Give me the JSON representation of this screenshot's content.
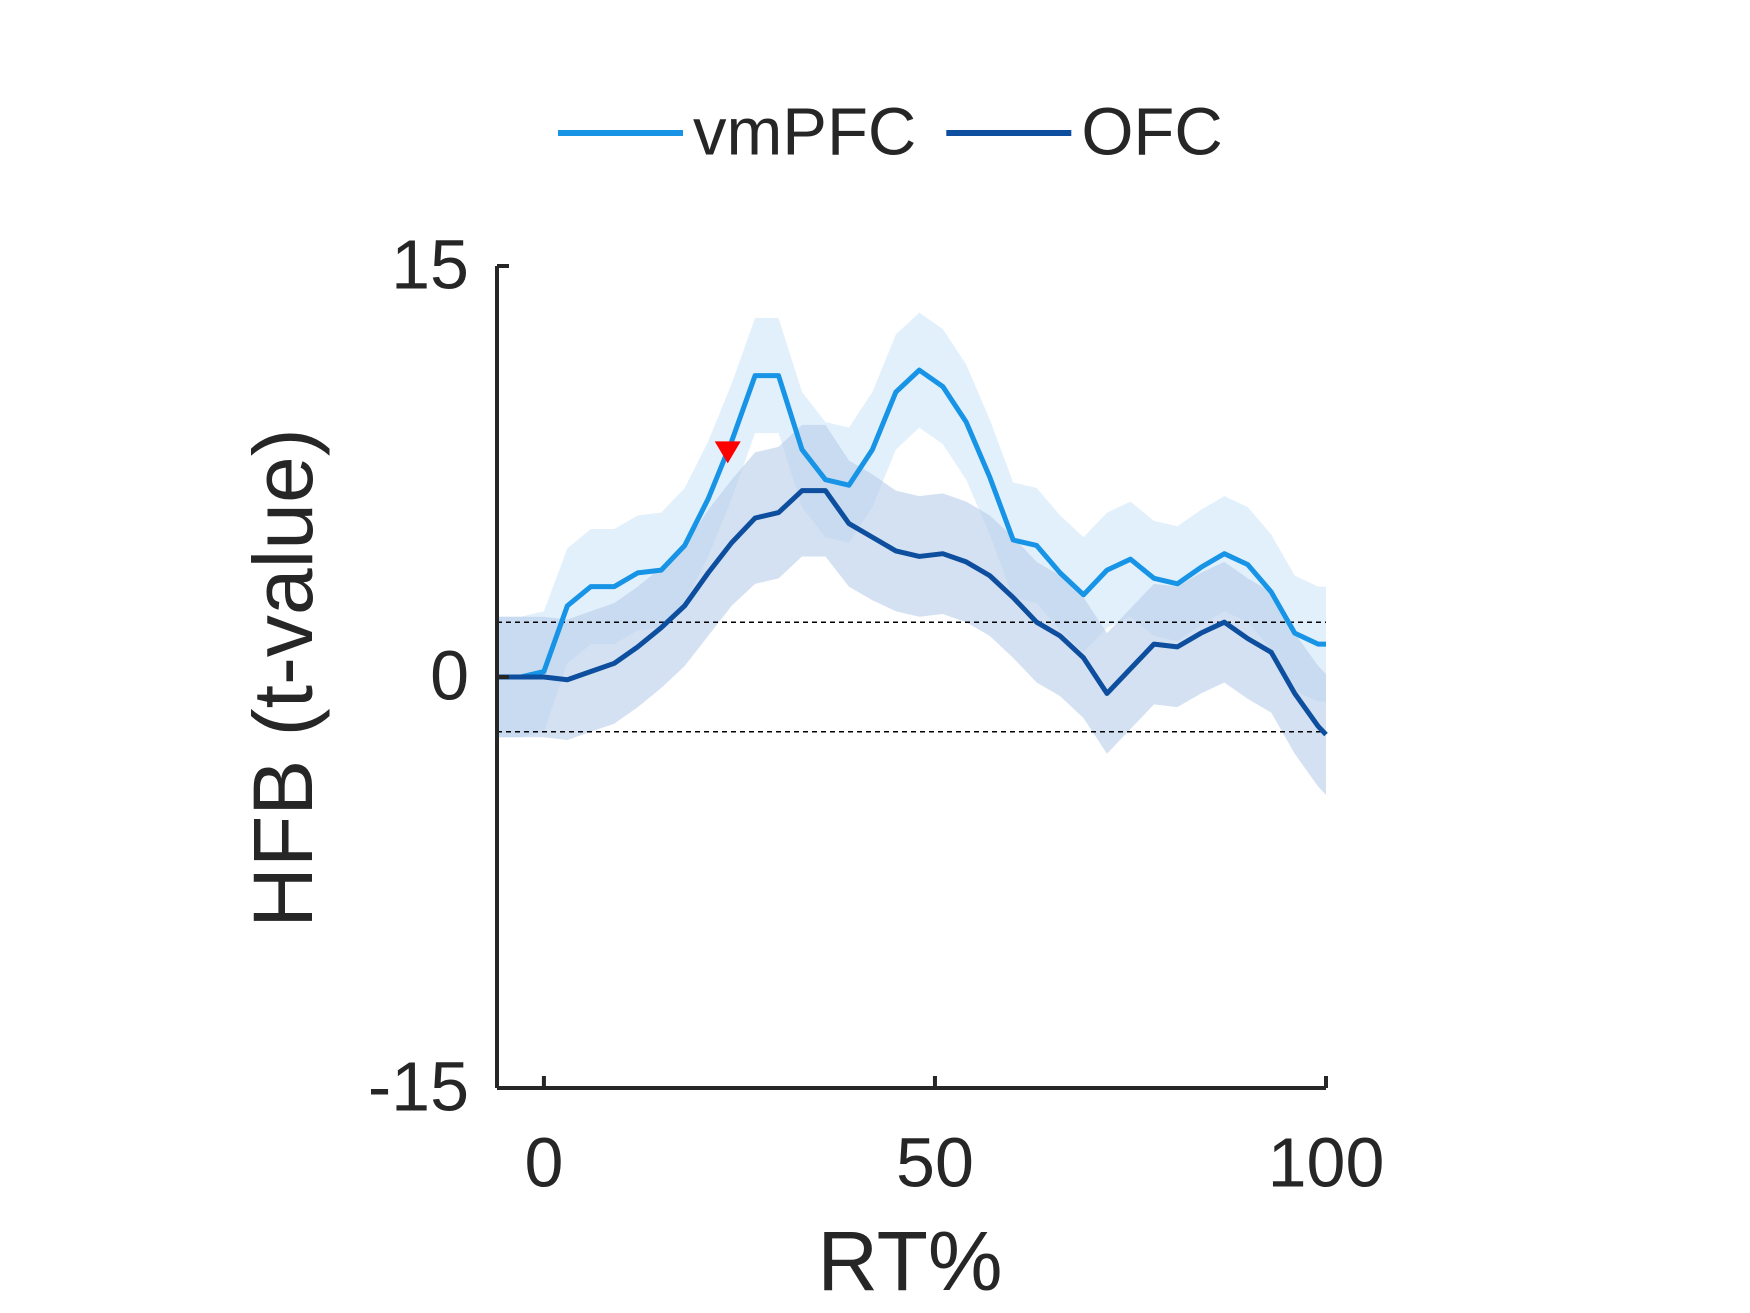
{
  "chart_data": {
    "type": "line",
    "xlabel": "RT%",
    "ylabel": "HFB (t-value)",
    "x": [
      -6,
      -3,
      0,
      3,
      6,
      9,
      12,
      15,
      18,
      21,
      24,
      27,
      30,
      33,
      36,
      39,
      42,
      45,
      48,
      51,
      54,
      57,
      60,
      63,
      66,
      69,
      72,
      75,
      78,
      81,
      84,
      87,
      90,
      93,
      96,
      99,
      100
    ],
    "series": [
      {
        "name": "vmPFC",
        "color": "#1794e6",
        "band_color": "#cfe6fa",
        "values": [
          0,
          0,
          0.2,
          2.6,
          3.3,
          3.3,
          3.8,
          3.9,
          4.8,
          6.5,
          8.6,
          11.0,
          11.0,
          8.3,
          7.2,
          7.0,
          8.3,
          10.4,
          11.2,
          10.6,
          9.3,
          7.3,
          5.0,
          4.8,
          3.8,
          3.0,
          3.9,
          4.3,
          3.6,
          3.4,
          4.0,
          4.5,
          4.1,
          3.1,
          1.6,
          1.2,
          1.2
        ],
        "ci": [
          2.2,
          2.2,
          2.2,
          2.1,
          2.1,
          2.1,
          2.1,
          2.1,
          2.1,
          2.1,
          2.1,
          2.1,
          2.1,
          2.1,
          2.1,
          2.1,
          2.1,
          2.1,
          2.1,
          2.1,
          2.1,
          2.1,
          2.1,
          2.1,
          2.1,
          2.1,
          2.1,
          2.1,
          2.1,
          2.1,
          2.1,
          2.1,
          2.1,
          2.1,
          2.1,
          2.1,
          2.1
        ]
      },
      {
        "name": "OFC",
        "color": "#0d4f9e",
        "band_color": "#b7cdea",
        "values": [
          0,
          0,
          0,
          -0.1,
          0.2,
          0.5,
          1.1,
          1.8,
          2.6,
          3.8,
          4.9,
          5.8,
          6.0,
          6.8,
          6.8,
          5.6,
          5.1,
          4.6,
          4.4,
          4.5,
          4.2,
          3.7,
          2.9,
          2.0,
          1.5,
          0.7,
          -0.6,
          0.3,
          1.2,
          1.1,
          1.6,
          2.0,
          1.4,
          0.9,
          -0.6,
          -1.8,
          -2.1
        ],
        "ci": [
          2.2,
          2.2,
          2.2,
          2.2,
          2.2,
          2.2,
          2.2,
          2.2,
          2.2,
          2.3,
          2.3,
          2.4,
          2.4,
          2.4,
          2.4,
          2.3,
          2.3,
          2.2,
          2.2,
          2.2,
          2.2,
          2.2,
          2.2,
          2.2,
          2.2,
          2.2,
          2.2,
          2.2,
          2.2,
          2.2,
          2.2,
          2.2,
          2.2,
          2.2,
          2.2,
          2.2,
          2.2
        ]
      }
    ],
    "hlines": [
      2,
      -2
    ],
    "marker": {
      "x": 23.5,
      "y": 8.2,
      "color": "#ff0000"
    },
    "xlim": [
      -6,
      100
    ],
    "ylim": [
      -15,
      15
    ],
    "xticks": [
      0,
      50,
      100
    ],
    "yticks": [
      -15,
      0,
      15
    ],
    "legend": "top",
    "grid": false
  }
}
